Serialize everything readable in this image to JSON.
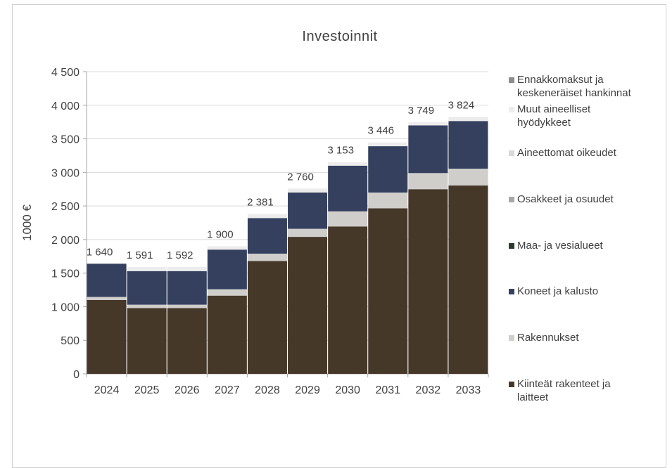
{
  "chart_data": {
    "type": "bar",
    "stacked": true,
    "title": "Investoinnit",
    "xlabel": "",
    "ylabel": "1000 €",
    "ylim": [
      0,
      4500
    ],
    "yticks": [
      0,
      500,
      1000,
      1500,
      2000,
      2500,
      3000,
      3500,
      4000,
      4500
    ],
    "ytick_labels": [
      "0",
      "500",
      "1 000",
      "1 500",
      "2 000",
      "2 500",
      "3 000",
      "3 500",
      "4 000",
      "4 500"
    ],
    "grid": true,
    "legend_position": "right",
    "categories": [
      "2024",
      "2025",
      "2026",
      "2027",
      "2028",
      "2029",
      "2030",
      "2031",
      "2032",
      "2033"
    ],
    "totals": [
      1640,
      1591,
      1592,
      1900,
      2381,
      2760,
      3153,
      3446,
      3749,
      3824
    ],
    "total_labels": [
      "1 640",
      "1 591",
      "1 592",
      "1 900",
      "2 381",
      "2 760",
      "3 153",
      "3 446",
      "3 749",
      "3 824"
    ],
    "series": [
      {
        "name": "Kiinteät rakenteet ja laitteet",
        "color": "#463829",
        "values": [
          1100,
          980,
          980,
          1165,
          1680,
          2040,
          2195,
          2465,
          2750,
          2805
        ]
      },
      {
        "name": "Rakennukset",
        "color": "#d0cecb",
        "values": [
          45,
          50,
          50,
          95,
          110,
          120,
          225,
          235,
          240,
          250
        ]
      },
      {
        "name": "Koneet ja kalusto",
        "color": "#34405e",
        "values": [
          495,
          500,
          500,
          590,
          530,
          540,
          680,
          690,
          710,
          710
        ]
      },
      {
        "name": "Maa- ja vesialueet",
        "color": "#2b3a2d",
        "values": [
          0,
          0,
          0,
          0,
          0,
          0,
          0,
          0,
          0,
          0
        ]
      },
      {
        "name": "Osakkeet ja osuudet",
        "color": "#a8a8a8",
        "values": [
          0,
          0,
          0,
          0,
          0,
          0,
          0,
          0,
          0,
          0
        ]
      },
      {
        "name": "Aineettomat oikeudet",
        "color": "#d9d9d9",
        "values": [
          0,
          0,
          0,
          0,
          0,
          0,
          0,
          0,
          0,
          0
        ]
      },
      {
        "name": "Muut aineelliset hyödykkeet",
        "color": "#ececec",
        "values": [
          0,
          61,
          62,
          50,
          61,
          60,
          53,
          56,
          49,
          59
        ]
      },
      {
        "name": "Ennakkomaksut ja keskeneräiset hankinnat",
        "color": "#8c8c8c",
        "values": [
          0,
          0,
          0,
          0,
          0,
          0,
          0,
          0,
          0,
          0
        ]
      }
    ],
    "legend_lines": [
      [
        "Ennakkomaksut ja",
        "keskeneräiset hankinnat"
      ],
      [
        "Muut aineelliset",
        "hyödykkeet"
      ],
      [
        "Aineettomat oikeudet"
      ],
      [
        "Osakkeet ja osuudet"
      ],
      [
        "Maa- ja vesialueet"
      ],
      [
        "Koneet ja kalusto"
      ],
      [
        "Rakennukset"
      ],
      [
        "Kiinteät rakenteet ja",
        "laitteet"
      ]
    ]
  }
}
